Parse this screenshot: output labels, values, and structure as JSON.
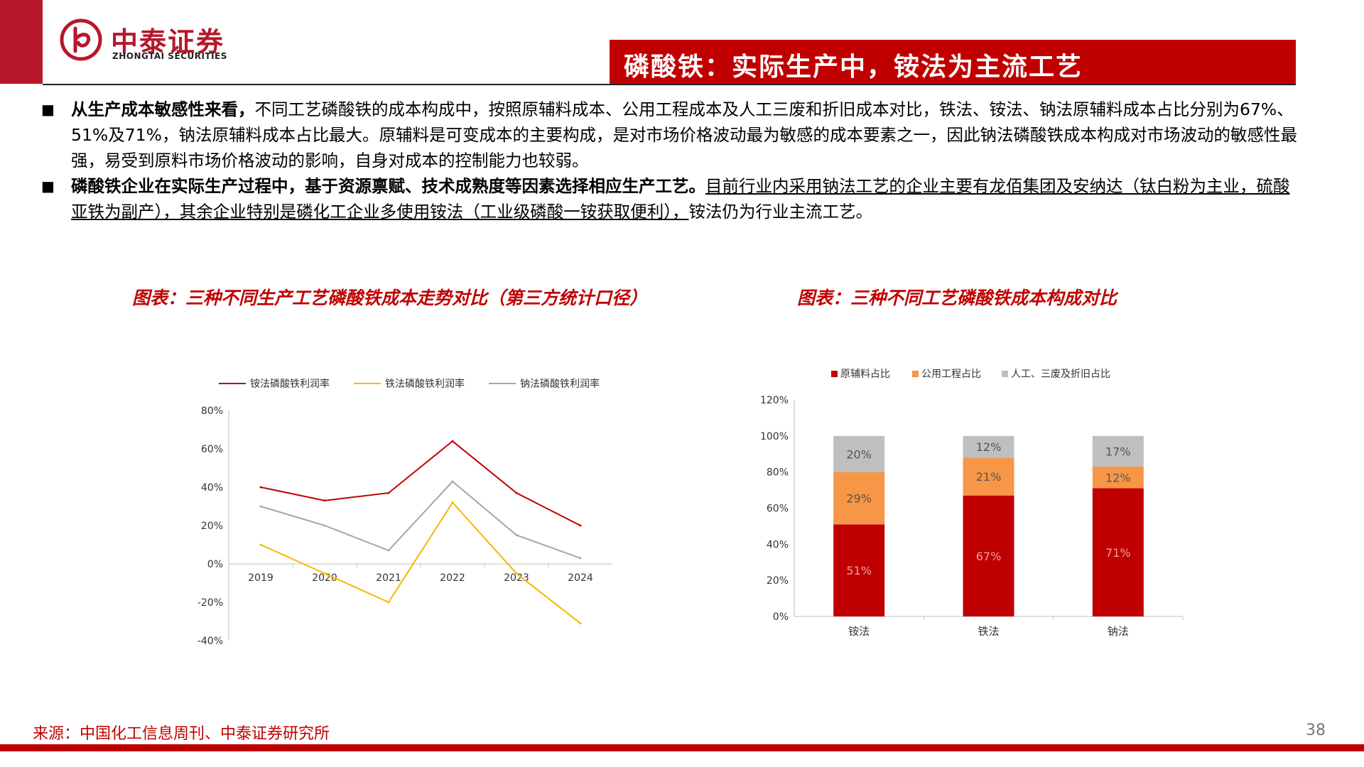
{
  "header": {
    "logo_cn": "中泰证券",
    "logo_en": "ZHONGTAI SECURITIES",
    "title": "磷酸铁：实际生产中，铵法为主流工艺"
  },
  "body": {
    "bullet_symbol": "■",
    "para1_bold": "从生产成本敏感性来看，",
    "para1_text": "不同工艺磷酸铁的成本构成中，按照原辅料成本、公用工程成本及人工三废和折旧成本对比，铁法、铵法、钠法原辅料成本占比分别为67%、51%及71%，钠法原辅料成本占比最大。原辅料是可变成本的主要构成，是对市场价格波动最为敏感的成本要素之一，因此钠法磷酸铁成本构成对市场波动的敏感性最强，易受到原料市场价格波动的影响，自身对成本的控制能力也较弱。",
    "para2_bold": "磷酸铁企业在实际生产过程中，基于资源禀赋、技术成熟度等因素选择相应生产工艺。",
    "para2_underlined": "目前行业内采用钠法工艺的企业主要有龙佰集团及安纳达（钛白粉为主业，硫酸亚铁为副产），其余企业特别是磷化工企业多使用铵法（工业级磷酸一铵获取便利），",
    "para2_tail": "铵法仍为行业主流工艺。"
  },
  "captions": {
    "left": "图表：三种不同生产工艺磷酸铁成本走势对比（第三方统计口径）",
    "right": "图表：三种不同工艺磷酸铁成本构成对比"
  },
  "chart_data": [
    {
      "type": "line",
      "x": [
        "2019",
        "2020",
        "2021",
        "2022",
        "2023",
        "2024"
      ],
      "series": [
        {
          "name": "铵法磷酸铁利润率",
          "color": "#c00000",
          "values": [
            40,
            33,
            37,
            64,
            37,
            20
          ]
        },
        {
          "name": "铁法磷酸铁利润率",
          "color": "#f5b700",
          "values": [
            10,
            -5,
            -20,
            32,
            -5,
            -31
          ]
        },
        {
          "name": "钠法磷酸铁利润率",
          "color": "#a6a6a6",
          "values": [
            30,
            20,
            7,
            43,
            15,
            3
          ]
        }
      ],
      "yticks": [
        "80%",
        "60%",
        "40%",
        "20%",
        "0%",
        "-20%",
        "-40%"
      ],
      "ylim": [
        -40,
        80
      ],
      "legend": "top"
    },
    {
      "type": "bar",
      "stacked": true,
      "categories": [
        "铵法",
        "铁法",
        "钠法"
      ],
      "series": [
        {
          "name": "原辅料占比",
          "color": "#c00000",
          "values": [
            51,
            67,
            71
          ],
          "labels": [
            "51%",
            "67%",
            "71%"
          ]
        },
        {
          "name": "公用工程占比",
          "color": "#f79646",
          "values": [
            29,
            21,
            12
          ],
          "labels": [
            "29%",
            "21%",
            "12%"
          ]
        },
        {
          "name": "人工、三废及折旧占比",
          "color": "#bfbfbf",
          "values": [
            20,
            12,
            17
          ],
          "labels": [
            "20%",
            "12%",
            "17%"
          ]
        }
      ],
      "yticks": [
        "120%",
        "100%",
        "80%",
        "60%",
        "40%",
        "20%",
        "0%"
      ],
      "ylim": [
        0,
        120
      ],
      "legend": "top"
    }
  ],
  "footer": {
    "source": "来源：中国化工信息周刊、中泰证券研究所",
    "page": "38"
  }
}
